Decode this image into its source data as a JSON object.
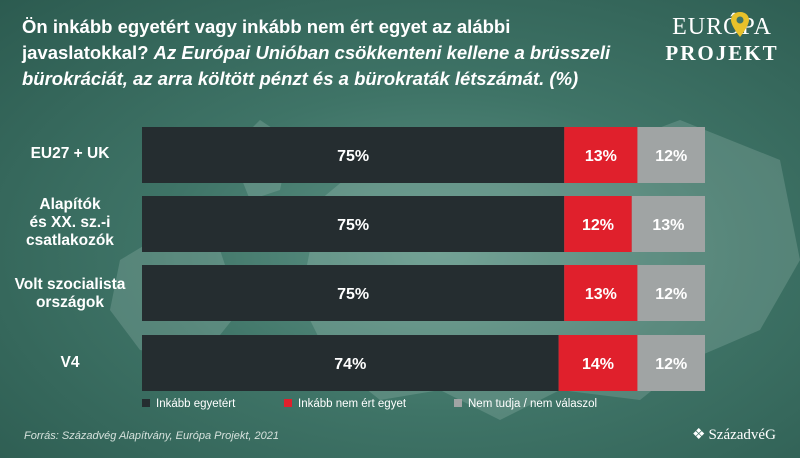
{
  "title": {
    "main": "Ön inkább egyetért vagy inkább nem ért egyet az alábbi javaslatokkal?",
    "question": "Az Európai Unióban csökkenteni kellene a brüsszeli bürokráciát, az arra költött pénzt és a bürokraták létszámát. (%)"
  },
  "logo": {
    "line1": "EURÓPA",
    "line2": "PROJEKT"
  },
  "source": "Forrás: Századvég Alapítvány, Európa Projekt, 2021",
  "brand": {
    "icon": "diamond-icon",
    "name": "SzázadvéG"
  },
  "colors": {
    "agree": "#252d30",
    "disagree": "#e0202c",
    "dontknow": "#a0a4a4"
  },
  "chart_data": {
    "type": "bar",
    "orientation": "horizontal",
    "stacked": true,
    "categories": [
      "EU27 + UK",
      "Alapítók és XX. sz.-i csatlakozók",
      "Volt szocialista országok",
      "V4"
    ],
    "category_lines": [
      [
        "EU27 + UK"
      ],
      [
        "Alapítók",
        "és XX. sz.-i",
        "csatlakozók"
      ],
      [
        "Volt szocialista",
        "országok"
      ],
      [
        "V4"
      ]
    ],
    "series": [
      {
        "name": "Inkább egyetért",
        "values": [
          75,
          75,
          75,
          74
        ]
      },
      {
        "name": "Inkább nem ért egyet",
        "values": [
          13,
          12,
          13,
          14
        ]
      },
      {
        "name": "Nem tudja / nem válaszol",
        "values": [
          12,
          13,
          12,
          12
        ]
      }
    ],
    "value_suffix": "%",
    "xlim": [
      0,
      100
    ],
    "legend_position": "bottom",
    "grid": false
  }
}
